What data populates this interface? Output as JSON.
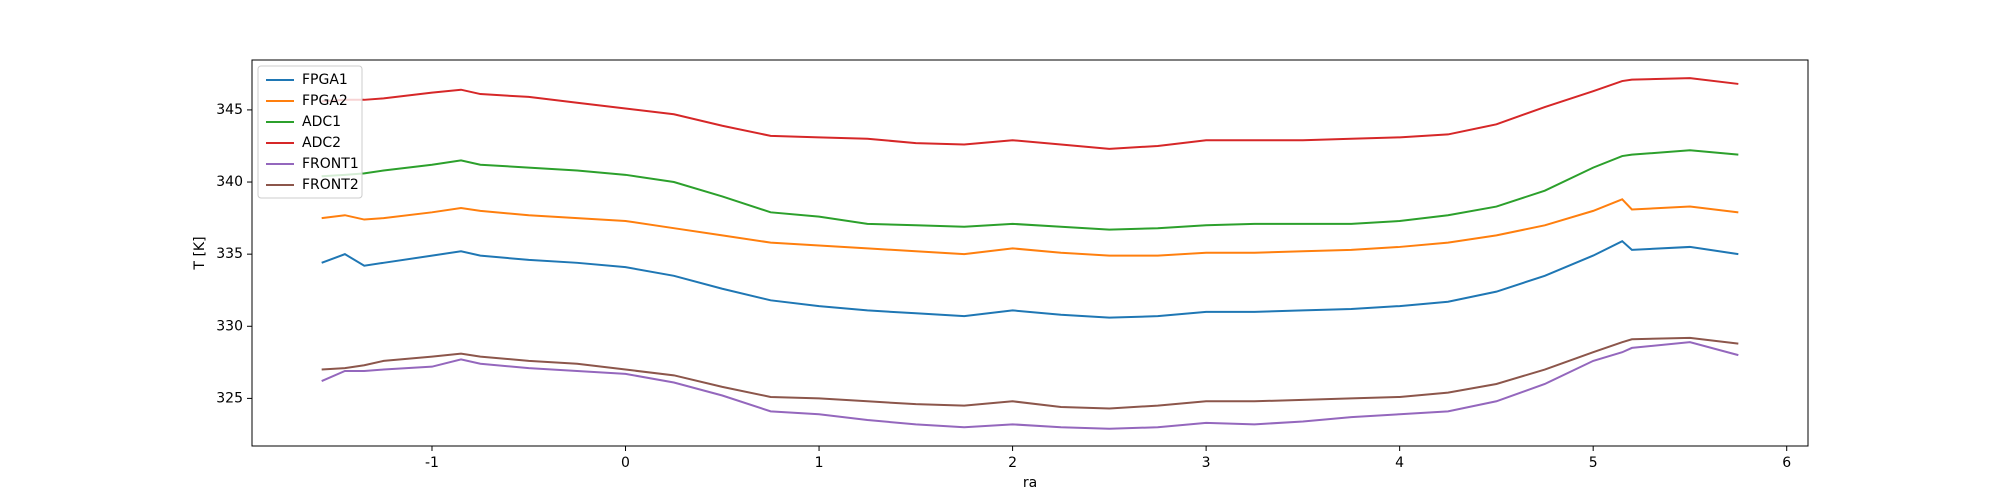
{
  "chart_data": {
    "type": "line",
    "xlabel": "ra",
    "ylabel": "T [K]",
    "x": [
      -1.57,
      -1.45,
      -1.35,
      -1.25,
      -1,
      -0.85,
      -0.75,
      -0.5,
      -0.25,
      0,
      0.25,
      0.5,
      0.75,
      1,
      1.25,
      1.5,
      1.75,
      2,
      2.25,
      2.5,
      2.75,
      3,
      3.25,
      3.5,
      3.75,
      4,
      4.25,
      4.5,
      4.75,
      5,
      5.15,
      5.2,
      5.5,
      5.75
    ],
    "series": [
      {
        "name": "FPGA1",
        "color": "#1f77b4",
        "values": [
          334.4,
          335.0,
          334.2,
          334.4,
          334.9,
          335.2,
          334.9,
          334.6,
          334.4,
          334.1,
          333.5,
          332.6,
          331.8,
          331.4,
          331.1,
          330.9,
          330.7,
          331.1,
          330.8,
          330.6,
          330.7,
          331.0,
          331.0,
          331.1,
          331.2,
          331.4,
          331.7,
          332.4,
          333.5,
          334.9,
          335.9,
          335.3,
          335.5,
          335.0
        ]
      },
      {
        "name": "FPGA2",
        "color": "#ff7f0e",
        "values": [
          337.5,
          337.7,
          337.4,
          337.5,
          337.9,
          338.2,
          338.0,
          337.7,
          337.5,
          337.3,
          336.8,
          336.3,
          335.8,
          335.6,
          335.4,
          335.2,
          335.0,
          335.4,
          335.1,
          334.9,
          334.9,
          335.1,
          335.1,
          335.2,
          335.3,
          335.5,
          335.8,
          336.3,
          337.0,
          338.0,
          338.8,
          338.1,
          338.3,
          337.9
        ]
      },
      {
        "name": "ADC1",
        "color": "#2ca02c",
        "values": [
          340.4,
          340.5,
          340.6,
          340.8,
          341.2,
          341.5,
          341.2,
          341.0,
          340.8,
          340.5,
          340.0,
          339.0,
          337.9,
          337.6,
          337.1,
          337.0,
          336.9,
          337.1,
          336.9,
          336.7,
          336.8,
          337.0,
          337.1,
          337.1,
          337.1,
          337.3,
          337.7,
          338.3,
          339.4,
          341.0,
          341.8,
          341.9,
          342.2,
          341.9
        ]
      },
      {
        "name": "ADC2",
        "color": "#d62728",
        "values": [
          345.6,
          345.7,
          345.7,
          345.8,
          346.2,
          346.4,
          346.1,
          345.9,
          345.5,
          345.1,
          344.7,
          343.9,
          343.2,
          343.1,
          343.0,
          342.7,
          342.6,
          342.9,
          342.6,
          342.3,
          342.5,
          342.9,
          342.9,
          342.9,
          343.0,
          343.1,
          343.3,
          344.0,
          345.2,
          346.3,
          347.0,
          347.1,
          347.2,
          346.8
        ]
      },
      {
        "name": "FRONT1",
        "color": "#9467bd",
        "values": [
          326.2,
          326.9,
          326.9,
          327.0,
          327.2,
          327.7,
          327.4,
          327.1,
          326.9,
          326.7,
          326.1,
          325.2,
          324.1,
          323.9,
          323.5,
          323.2,
          323.0,
          323.2,
          323.0,
          322.9,
          323.0,
          323.3,
          323.2,
          323.4,
          323.7,
          323.9,
          324.1,
          324.8,
          326.0,
          327.6,
          328.2,
          328.5,
          328.9,
          328.0
        ]
      },
      {
        "name": "FRONT2",
        "color": "#8c564b",
        "values": [
          327.0,
          327.1,
          327.3,
          327.6,
          327.9,
          328.1,
          327.9,
          327.6,
          327.4,
          327.0,
          326.6,
          325.8,
          325.1,
          325.0,
          324.8,
          324.6,
          324.5,
          324.8,
          324.4,
          324.3,
          324.5,
          324.8,
          324.8,
          324.9,
          325.0,
          325.1,
          325.4,
          326.0,
          327.0,
          328.2,
          328.9,
          329.1,
          329.2,
          328.8
        ]
      }
    ],
    "xlim": [
      -1.93,
      6.11
    ],
    "xticks": [
      -1,
      0,
      1,
      2,
      3,
      4,
      5,
      6
    ],
    "ylim": [
      321.7,
      348.46
    ],
    "yticks": [
      325,
      330,
      335,
      340,
      345
    ],
    "legend": "upper left"
  }
}
